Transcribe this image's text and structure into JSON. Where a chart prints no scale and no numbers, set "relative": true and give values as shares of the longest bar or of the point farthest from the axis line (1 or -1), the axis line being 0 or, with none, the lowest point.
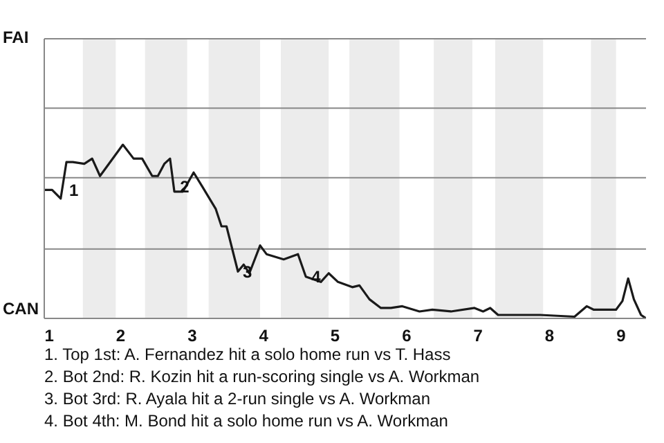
{
  "chart_data": {
    "type": "line",
    "relative": true,
    "x": [
      0.93,
      1.04,
      1.16,
      1.24,
      1.33,
      1.49,
      1.6,
      1.71,
      2.03,
      2.18,
      2.3,
      2.44,
      2.52,
      2.61,
      2.69,
      2.75,
      2.87,
      3.02,
      3.14,
      3.33,
      3.41,
      3.48,
      3.64,
      3.72,
      3.8,
      3.95,
      4.04,
      4.28,
      4.48,
      4.59,
      4.8,
      4.91,
      5.04,
      5.24,
      5.34,
      5.48,
      5.64,
      5.78,
      5.94,
      6.18,
      6.36,
      6.62,
      6.95,
      7.07,
      7.17,
      7.28,
      7.87,
      8.35,
      8.52,
      8.62,
      8.78,
      8.93,
      9.02,
      9.1,
      9.18,
      9.28,
      9.35
    ],
    "series": [
      {
        "color": "#1a1a1a",
        "values": [
          0.74,
          0.74,
          0.69,
          0.9,
          0.9,
          0.89,
          0.92,
          0.82,
          1,
          0.92,
          0.92,
          0.82,
          0.82,
          0.89,
          0.92,
          0.73,
          0.73,
          0.84,
          0.76,
          0.63,
          0.53,
          0.53,
          0.27,
          0.31,
          0.26,
          0.42,
          0.37,
          0.34,
          0.37,
          0.24,
          0.21,
          0.26,
          0.21,
          0.18,
          0.19,
          0.11,
          0.06,
          0.06,
          0.07,
          0.04,
          0.05,
          0.04,
          0.06,
          0.04,
          0.06,
          0.02,
          0.02,
          0.01,
          0.07,
          0.05,
          0.05,
          0.05,
          0.1,
          0.23,
          0.11,
          0.02,
          0
        ]
      }
    ],
    "xlim": [
      0.93,
      9.35
    ],
    "xticks": [
      1,
      2,
      3,
      4,
      5,
      6,
      7,
      8,
      9
    ],
    "marker": "none",
    "line_style": "solid",
    "ref_lines": [
      {
        "axis": "y",
        "value": 0.4,
        "color": "#888888"
      },
      {
        "axis": "y",
        "value": 0.81,
        "color": "#888888"
      },
      {
        "axis": "y",
        "value": 1.21,
        "color": "#888888"
      },
      {
        "axis": "y",
        "value": 1.61,
        "color": "#888888"
      }
    ],
    "bands": [
      {
        "axis": "x",
        "from": 1.47,
        "to": 1.93,
        "color": "#ececec"
      },
      {
        "axis": "x",
        "from": 2.34,
        "to": 2.93,
        "color": "#ececec"
      },
      {
        "axis": "x",
        "from": 3.23,
        "to": 3.95,
        "color": "#ececec"
      },
      {
        "axis": "x",
        "from": 4.24,
        "to": 4.91,
        "color": "#ececec"
      },
      {
        "axis": "x",
        "from": 5.2,
        "to": 5.9,
        "color": "#ececec"
      },
      {
        "axis": "x",
        "from": 6.38,
        "to": 6.92,
        "color": "#ececec"
      },
      {
        "axis": "x",
        "from": 7.24,
        "to": 7.91,
        "color": "#ececec"
      },
      {
        "axis": "x",
        "from": 8.58,
        "to": 8.93,
        "color": "#ececec"
      }
    ],
    "annotations": [
      "FAI",
      "CAN",
      {
        "text": "1",
        "x": 1.24,
        "y": 0.74
      },
      {
        "text": "2",
        "x": 2.79,
        "y": 0.76
      },
      {
        "text": "3",
        "x": 3.67,
        "y": 0.27
      },
      {
        "text": "4",
        "x": 4.63,
        "y": 0.24
      },
      "1. Top 1st: A. Fernandez hit a solo home run vs T. Hass",
      "2. Bot 2nd: R. Kozin hit a run-scoring single vs A. Workman",
      "3. Bot 3rd: R. Ayala hit a 2-run single vs A. Workman",
      "4. Bot 4th: M. Bond hit a solo home run vs A. Workman"
    ]
  }
}
